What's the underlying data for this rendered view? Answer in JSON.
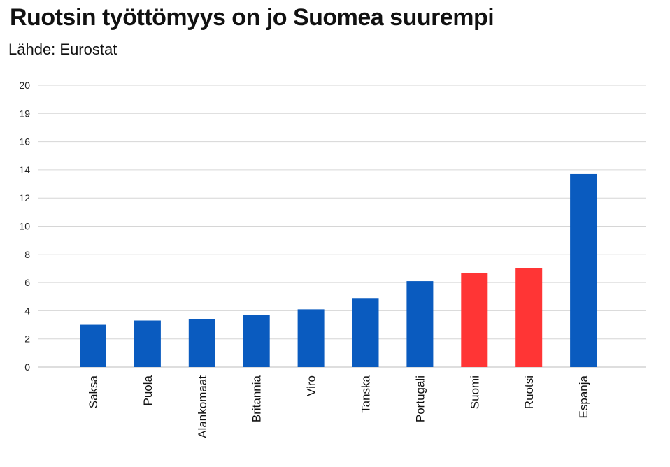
{
  "chart_data": {
    "type": "bar",
    "title": "Ruotsin työttömyys on jo Suomea suurempi",
    "subtitle": "Lähde: Eurostat",
    "categories": [
      "Saksa",
      "Puola",
      "Alankomaat",
      "Britannia",
      "Viro",
      "Tanska",
      "Portugali",
      "Suomi",
      "Ruotsi",
      "Espanja"
    ],
    "values": [
      3.0,
      3.3,
      3.4,
      3.7,
      4.1,
      4.9,
      6.1,
      6.7,
      7.0,
      13.7
    ],
    "colors": [
      "#0a5bbf",
      "#0a5bbf",
      "#0a5bbf",
      "#0a5bbf",
      "#0a5bbf",
      "#0a5bbf",
      "#0a5bbf",
      "#ff3535",
      "#ff3535",
      "#0a5bbf"
    ],
    "ytick_labels": [
      "0",
      "2",
      "4",
      "6",
      "8",
      "10",
      "12",
      "14",
      "16",
      "19",
      "20"
    ],
    "ylim": [
      0,
      20
    ],
    "grid": true,
    "legend": "none"
  }
}
